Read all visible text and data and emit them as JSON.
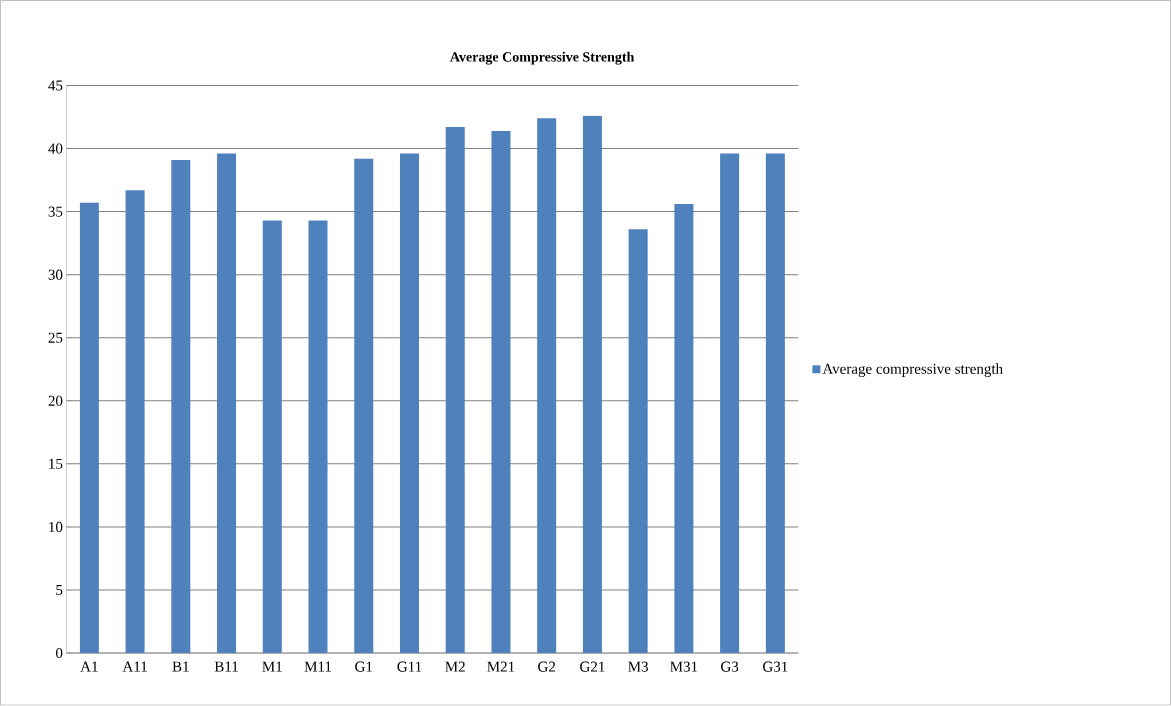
{
  "chart_data": {
    "type": "bar",
    "title": "Average Compressive Strength",
    "categories": [
      "A1",
      "A11",
      "B1",
      "B11",
      "M1",
      "M11",
      "G1",
      "G11",
      "M2",
      "M21",
      "G2",
      "G21",
      "M3",
      "M31",
      "G3",
      "G31"
    ],
    "series": [
      {
        "name": "Average compressive strength",
        "color": "#4f81bd",
        "values": [
          35.7,
          36.7,
          39.1,
          39.6,
          34.3,
          34.3,
          39.2,
          39.6,
          41.7,
          41.4,
          42.4,
          42.6,
          33.6,
          35.6,
          39.6,
          39.6
        ]
      }
    ],
    "ylim": [
      0,
      45
    ],
    "yticks": [
      0,
      5,
      10,
      15,
      20,
      25,
      30,
      35,
      40,
      45
    ],
    "grid": "y",
    "legend": "right"
  }
}
